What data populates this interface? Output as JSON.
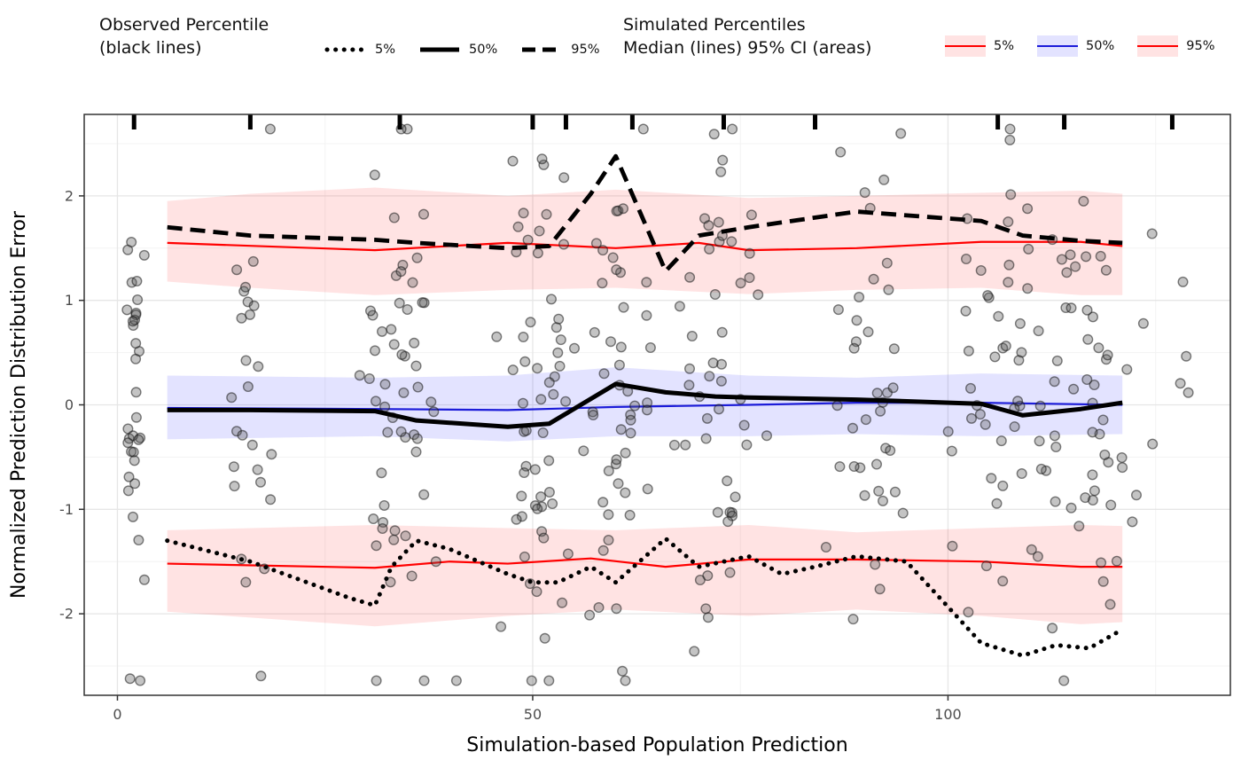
{
  "legend_observed": {
    "title_line1": "Observed Percentile",
    "title_line2": "(black lines)",
    "items": [
      {
        "style": "dotted",
        "label": "5%"
      },
      {
        "style": "solid",
        "label": "50%"
      },
      {
        "style": "dashed",
        "label": "95%"
      }
    ]
  },
  "legend_simulated": {
    "title_line1": "Simulated Percentiles",
    "title_line2": "Median (lines) 95% CI (areas)",
    "items": [
      {
        "color": "red",
        "label": "5%"
      },
      {
        "color": "blue",
        "label": "50%"
      },
      {
        "color": "red",
        "label": "95%"
      }
    ]
  },
  "chart_data": {
    "type": "scatter",
    "title": "",
    "xlabel": "Simulation-based Population Prediction",
    "ylabel": "Normalized Prediction Distribution Error",
    "xlim": [
      -4,
      134
    ],
    "ylim": [
      -2.78,
      2.78
    ],
    "x_ticks": [
      0,
      50,
      100
    ],
    "x_minor_ticks": [
      25,
      75,
      125
    ],
    "y_ticks": [
      2,
      1,
      0,
      -1,
      -2
    ],
    "y_minor_ticks": [
      -2.5,
      -1.5,
      -0.5,
      0.5,
      1.5,
      2.5
    ],
    "grid": true,
    "legend_position": "top",
    "colors": {
      "red": "#ff0000",
      "blue": "#1c1cd9",
      "red_area": "rgba(255,0,0,0.11)",
      "blue_area": "rgba(0,0,255,0.11)",
      "point_fill": "rgba(85,85,85,0.35)",
      "point_stroke": "rgba(25,25,25,0.55)",
      "black": "#000000",
      "grid_major": "#e6e6e6",
      "grid_minor": "#f3f3f3",
      "axis_text": "#4d4d4d",
      "panel_border": "#333333"
    },
    "rug_x": [
      2,
      16,
      34,
      50,
      54,
      62,
      73,
      84,
      106,
      114,
      127
    ],
    "ribbons": [
      {
        "name": "sim-95pct-ci",
        "color": "red_area",
        "points": [
          [
            6,
            1.18,
            1.95
          ],
          [
            16,
            1.12,
            2.02
          ],
          [
            31,
            1.05,
            2.08
          ],
          [
            47,
            1.1,
            2.0
          ],
          [
            60,
            1.12,
            2.06
          ],
          [
            76,
            1.06,
            1.98
          ],
          [
            89,
            1.1,
            2.0
          ],
          [
            104,
            1.12,
            2.03
          ],
          [
            116,
            1.05,
            2.05
          ],
          [
            121,
            1.05,
            2.02
          ]
        ]
      },
      {
        "name": "sim-50pct-ci",
        "color": "blue_area",
        "points": [
          [
            6,
            -0.33,
            0.28
          ],
          [
            31,
            -0.3,
            0.26
          ],
          [
            47,
            -0.35,
            0.28
          ],
          [
            60,
            -0.3,
            0.36
          ],
          [
            76,
            -0.3,
            0.28
          ],
          [
            89,
            -0.28,
            0.26
          ],
          [
            104,
            -0.3,
            0.3
          ],
          [
            121,
            -0.28,
            0.28
          ]
        ]
      },
      {
        "name": "sim-5pct-ci",
        "color": "red_area",
        "points": [
          [
            6,
            -1.98,
            -1.2
          ],
          [
            31,
            -2.12,
            -1.15
          ],
          [
            47,
            -2.02,
            -1.18
          ],
          [
            60,
            -1.96,
            -1.2
          ],
          [
            76,
            -2.02,
            -1.15
          ],
          [
            89,
            -1.96,
            -1.22
          ],
          [
            104,
            -2.02,
            -1.18
          ],
          [
            116,
            -2.1,
            -1.15
          ],
          [
            121,
            -2.08,
            -1.16
          ]
        ]
      }
    ],
    "sim_lines": [
      {
        "name": "sim-median-5pct",
        "color": "red",
        "label": "5%",
        "points": [
          [
            6,
            -1.52
          ],
          [
            31,
            -1.56
          ],
          [
            40,
            -1.5
          ],
          [
            47,
            -1.52
          ],
          [
            57,
            -1.47
          ],
          [
            66,
            -1.55
          ],
          [
            76,
            -1.48
          ],
          [
            89,
            -1.48
          ],
          [
            104,
            -1.5
          ],
          [
            116,
            -1.55
          ],
          [
            121,
            -1.55
          ]
        ]
      },
      {
        "name": "sim-median-50pct",
        "color": "blue",
        "label": "50%",
        "points": [
          [
            6,
            -0.03
          ],
          [
            31,
            -0.04
          ],
          [
            47,
            -0.05
          ],
          [
            60,
            -0.02
          ],
          [
            76,
            0.0
          ],
          [
            89,
            0.02
          ],
          [
            104,
            0.02
          ],
          [
            121,
            0.0
          ]
        ]
      },
      {
        "name": "sim-median-95pct",
        "color": "red",
        "label": "95%",
        "points": [
          [
            6,
            1.55
          ],
          [
            31,
            1.48
          ],
          [
            40,
            1.52
          ],
          [
            47,
            1.55
          ],
          [
            60,
            1.5
          ],
          [
            70,
            1.55
          ],
          [
            76,
            1.48
          ],
          [
            89,
            1.5
          ],
          [
            104,
            1.56
          ],
          [
            116,
            1.56
          ],
          [
            121,
            1.52
          ]
        ]
      }
    ],
    "obs_lines": [
      {
        "name": "obs-5pct",
        "dash": "dotted",
        "label": "5%",
        "points": [
          [
            6,
            -1.3
          ],
          [
            16,
            -1.5
          ],
          [
            28,
            -1.85
          ],
          [
            31,
            -1.92
          ],
          [
            33,
            -1.55
          ],
          [
            36,
            -1.3
          ],
          [
            40,
            -1.38
          ],
          [
            47,
            -1.62
          ],
          [
            50,
            -1.7
          ],
          [
            53,
            -1.7
          ],
          [
            57,
            -1.55
          ],
          [
            60,
            -1.7
          ],
          [
            66,
            -1.28
          ],
          [
            70,
            -1.55
          ],
          [
            76,
            -1.45
          ],
          [
            80,
            -1.62
          ],
          [
            84,
            -1.55
          ],
          [
            89,
            -1.45
          ],
          [
            95,
            -1.5
          ],
          [
            104,
            -2.28
          ],
          [
            109,
            -2.4
          ],
          [
            113,
            -2.3
          ],
          [
            117,
            -2.33
          ],
          [
            121,
            -2.15
          ]
        ]
      },
      {
        "name": "obs-50pct",
        "dash": "solid",
        "label": "50%",
        "points": [
          [
            6,
            -0.05
          ],
          [
            16,
            -0.05
          ],
          [
            31,
            -0.06
          ],
          [
            36,
            -0.15
          ],
          [
            47,
            -0.21
          ],
          [
            52,
            -0.18
          ],
          [
            60,
            0.2
          ],
          [
            66,
            0.12
          ],
          [
            72,
            0.08
          ],
          [
            76,
            0.07
          ],
          [
            89,
            0.05
          ],
          [
            104,
            0.01
          ],
          [
            109,
            -0.1
          ],
          [
            116,
            -0.04
          ],
          [
            121,
            0.02
          ]
        ]
      },
      {
        "name": "obs-95pct",
        "dash": "dashed",
        "label": "95%",
        "points": [
          [
            6,
            1.7
          ],
          [
            16,
            1.62
          ],
          [
            31,
            1.58
          ],
          [
            36,
            1.55
          ],
          [
            47,
            1.5
          ],
          [
            52,
            1.52
          ],
          [
            57,
            2.02
          ],
          [
            60,
            2.38
          ],
          [
            66,
            1.28
          ],
          [
            70,
            1.62
          ],
          [
            76,
            1.7
          ],
          [
            89,
            1.85
          ],
          [
            104,
            1.76
          ],
          [
            109,
            1.62
          ],
          [
            116,
            1.57
          ],
          [
            121,
            1.55
          ]
        ]
      }
    ],
    "scatter_clusters": [
      {
        "x": 2,
        "sx": 0.6,
        "n": 34
      },
      {
        "x": 16,
        "sx": 1.2,
        "n": 26
      },
      {
        "x": 34,
        "sx": 2.6,
        "n": 56
      },
      {
        "x": 51,
        "sx": 2.2,
        "n": 58
      },
      {
        "x": 60,
        "sx": 2.4,
        "n": 48
      },
      {
        "x": 73,
        "sx": 2.6,
        "n": 50
      },
      {
        "x": 90,
        "sx": 2.2,
        "n": 38
      },
      {
        "x": 107,
        "sx": 3.0,
        "n": 52
      },
      {
        "x": 117,
        "sx": 2.4,
        "n": 46
      },
      {
        "x": 126,
        "sx": 2.5,
        "n": 8
      }
    ],
    "scatter_y_sd": 1.18,
    "seed": 42
  }
}
